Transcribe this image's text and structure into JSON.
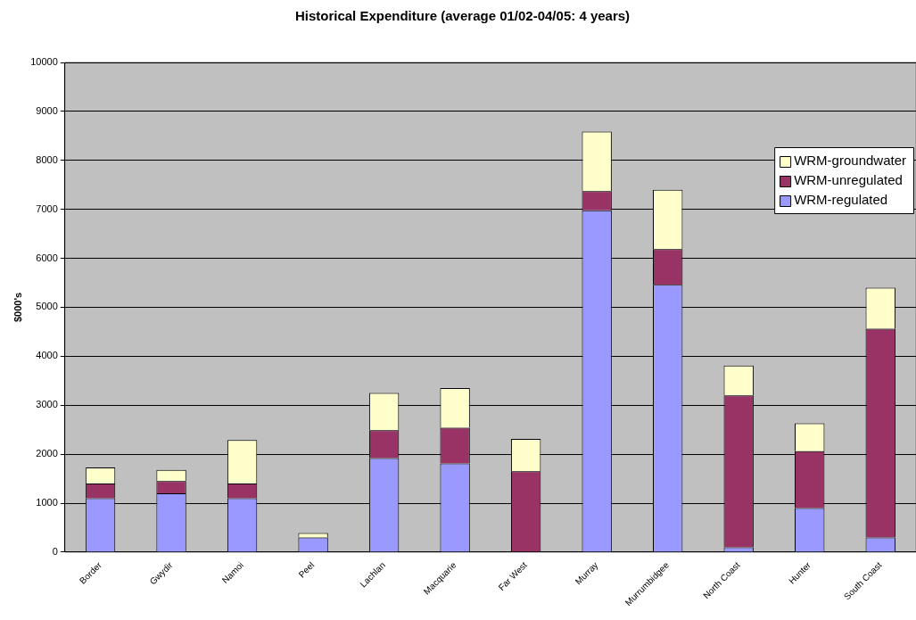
{
  "chart_data": {
    "type": "bar",
    "title": "Historical Expenditure (average 01/02-04/05: 4 years)",
    "ylabel": "$000's",
    "categories": [
      "Border",
      "Gwydir",
      "Namoi",
      "Peel",
      "Lachlan",
      "Macquarie",
      "Far West",
      "Murray",
      "Murrumbidgee",
      "North Coast",
      "Hunter",
      "South Coast"
    ],
    "stacked": true,
    "series": [
      {
        "name": "WRM-regulated",
        "color": "#9999ff",
        "values": [
          1100,
          1200,
          1100,
          300,
          1920,
          1810,
          0,
          6980,
          5460,
          100,
          900,
          300
        ]
      },
      {
        "name": "WRM-unregulated",
        "color": "#993366",
        "values": [
          300,
          250,
          300,
          0,
          570,
          730,
          1650,
          390,
          730,
          3100,
          1160,
          4260
        ]
      },
      {
        "name": "WRM-groundwater",
        "color": "#ffffcc",
        "values": [
          330,
          230,
          890,
          90,
          760,
          810,
          660,
          1220,
          1210,
          610,
          570,
          840
        ]
      }
    ],
    "ylim": [
      0,
      10000
    ],
    "yticks": [
      0,
      1000,
      2000,
      3000,
      4000,
      5000,
      6000,
      7000,
      8000,
      9000,
      10000
    ],
    "grid": "y",
    "legend": "top right"
  }
}
